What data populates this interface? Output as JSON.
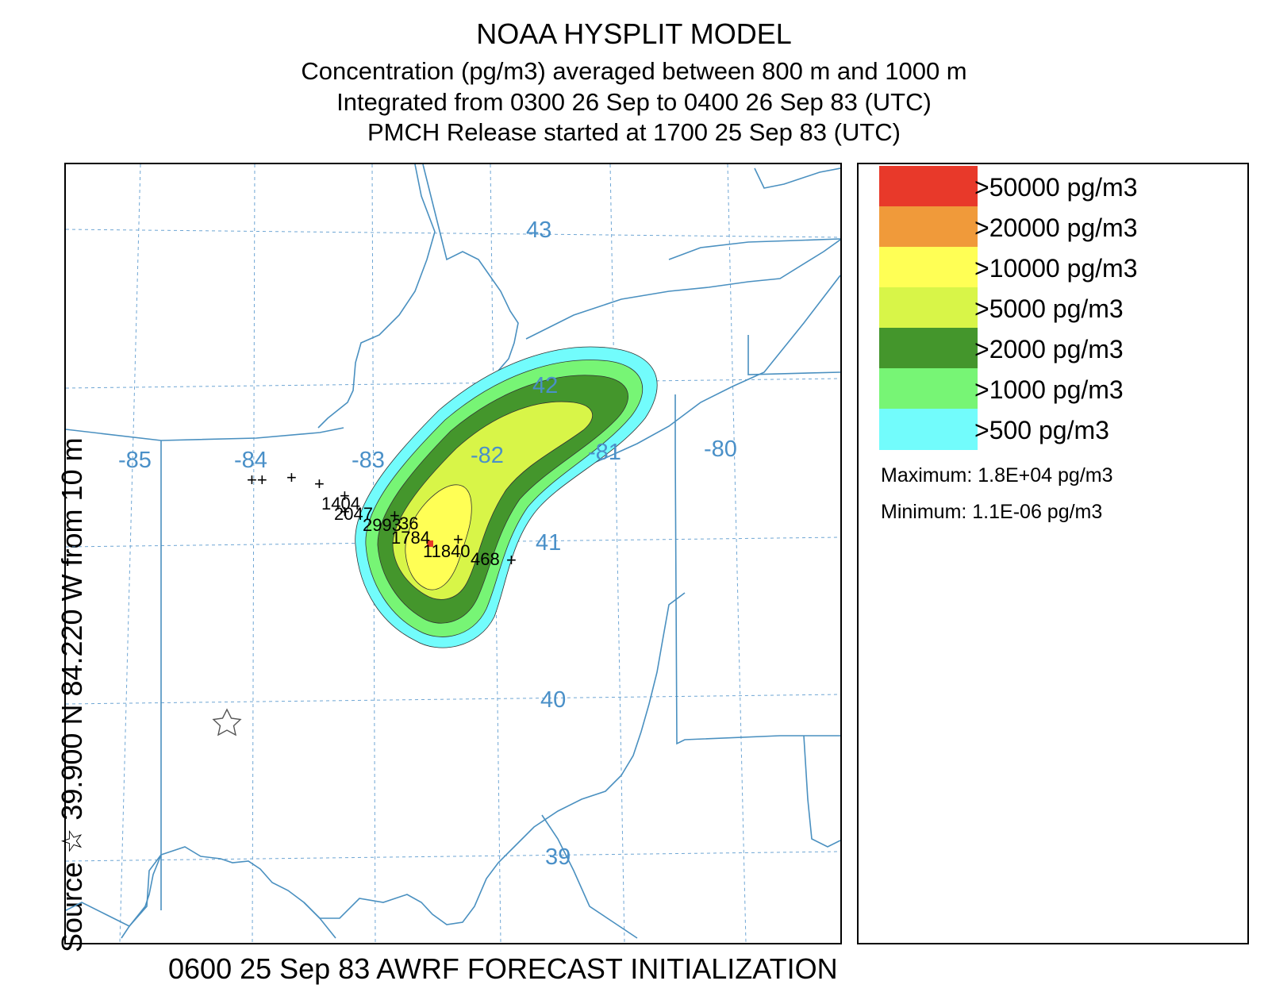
{
  "header": {
    "title": "NOAA HYSPLIT MODEL",
    "line2": "Concentration  (pg/m3) averaged between   800 m and  1000 m",
    "line3": "Integrated from 0300 26 Sep to 0400 26 Sep 83 (UTC)",
    "line4": "PMCH Release started at 1700 25 Sep 83 (UTC)"
  },
  "side_label": "Source ☆  39.900  N  84.220  W    from   10 m",
  "footer": "0600 25 Sep 83 AWRF FORECAST INITIALIZATION",
  "map": {
    "lon_labels": [
      "-85",
      "-84",
      "-83",
      "-82",
      "-81",
      "-80"
    ],
    "lat_labels": [
      "43",
      "42",
      "41",
      "40",
      "39"
    ],
    "station_values": [
      "1404",
      "2047",
      "2993",
      "1784",
      "11840",
      "468",
      "36",
      "6",
      "7"
    ],
    "grid_color": "#6fa6d4",
    "boundary_color": "#4a90c0",
    "label_color": "#4a90c8",
    "source_marker": "star-icon"
  },
  "legend": {
    "items": [
      {
        "label": ">50000 pg/m3",
        "color": "#e8392a"
      },
      {
        "label": ">20000 pg/m3",
        "color": "#f09a3a"
      },
      {
        "label": ">10000 pg/m3",
        "color": "#ffff55"
      },
      {
        "label": ">5000 pg/m3",
        "color": "#d8f548"
      },
      {
        "label": ">2000 pg/m3",
        "color": "#44962c"
      },
      {
        "label": ">1000 pg/m3",
        "color": "#77f575"
      },
      {
        "label": ">500 pg/m3",
        "color": "#72fcfc"
      }
    ],
    "maximum": "Maximum: 1.8E+04 pg/m3",
    "minimum": "Minimum: 1.1E-06 pg/m3"
  }
}
